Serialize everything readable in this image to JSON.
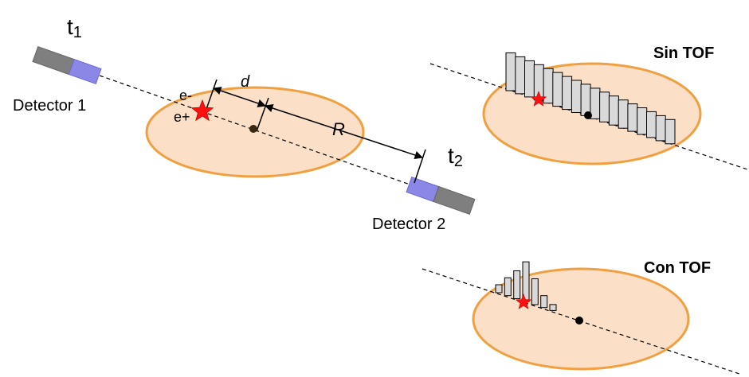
{
  "labels": {
    "t1_main": "t",
    "t1_sub": "1",
    "t2_main": "t",
    "t2_sub": "2",
    "detector1": "Detector 1",
    "detector2": "Detector 2",
    "e_minus": "e-",
    "e_plus": "e+",
    "d": "d",
    "R": "R",
    "sin_tof": "Sin TOF",
    "con_tof": "Con TOF"
  },
  "colors": {
    "ellipse_fill": "#fbdfc6",
    "ellipse_stroke": "#f0a040",
    "detector_gray": "#7f7f7f",
    "detector_crystal": "#8a87e6",
    "star": "#ff1010",
    "bar_fill": "#d9d9d9"
  },
  "sin_tof_bar_heights": [
    0.95,
    0.93,
    0.91,
    0.89,
    0.87,
    0.85,
    0.83,
    0.81,
    0.79,
    0.77,
    0.75,
    0.73,
    0.71,
    0.69,
    0.67,
    0.65,
    0.63,
    0.61
  ],
  "con_tof_bar_heights": [
    0.2,
    0.45,
    0.7,
    1.0,
    0.65,
    0.3,
    0.15
  ]
}
